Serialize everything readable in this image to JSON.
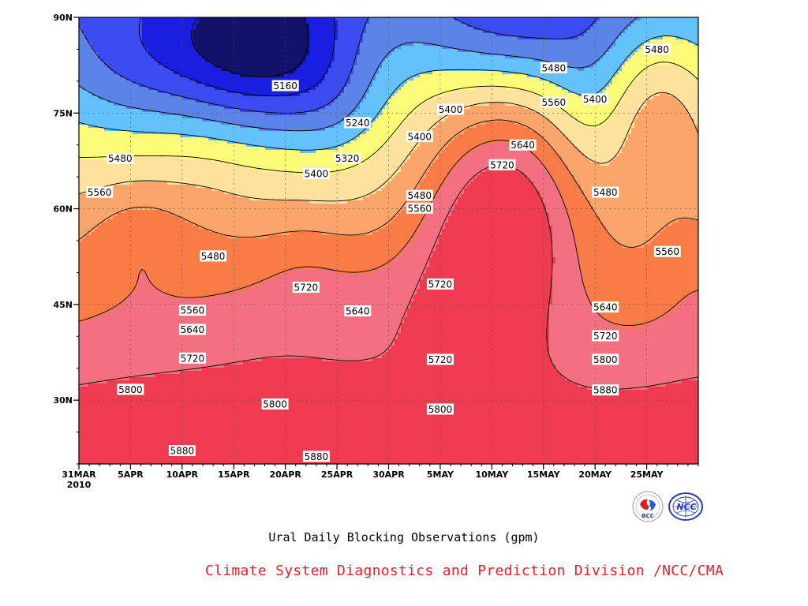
{
  "chart_data": {
    "type": "heatmap",
    "title": "Ural Daily Blocking Observations (gpm)",
    "credit": "Climate System Diagnostics and Prediction Division /NCC/CMA",
    "x": {
      "start": "2010-03-31",
      "end": "2010-05-30",
      "ticks": [
        {
          "date": "2010-03-31",
          "label": "31MAR",
          "sublabel": "2010"
        },
        {
          "date": "2010-04-05",
          "label": "5APR"
        },
        {
          "date": "2010-04-10",
          "label": "10APR"
        },
        {
          "date": "2010-04-15",
          "label": "15APR"
        },
        {
          "date": "2010-04-20",
          "label": "20APR"
        },
        {
          "date": "2010-04-25",
          "label": "25APR"
        },
        {
          "date": "2010-04-30",
          "label": "30APR"
        },
        {
          "date": "2010-05-05",
          "label": "5MAY"
        },
        {
          "date": "2010-05-10",
          "label": "10MAY"
        },
        {
          "date": "2010-05-15",
          "label": "15MAY"
        },
        {
          "date": "2010-05-20",
          "label": "20MAY"
        },
        {
          "date": "2010-05-25",
          "label": "25MAY"
        }
      ]
    },
    "y": {
      "range": [
        20,
        90
      ],
      "unit": "N",
      "ticks": [
        {
          "value": 30,
          "label": "30N"
        },
        {
          "value": 45,
          "label": "45N"
        },
        {
          "value": 60,
          "label": "60N"
        },
        {
          "value": 75,
          "label": "75N"
        },
        {
          "value": 90,
          "label": "90N"
        }
      ]
    },
    "grid": true,
    "contour_levels": [
      5160,
      5240,
      5320,
      5400,
      5480,
      5560,
      5640,
      5720,
      5800,
      5880
    ],
    "fill_colors": [
      "#10126a",
      "#1a1ee0",
      "#3a4bf0",
      "#5a84e8",
      "#63c2fb",
      "#fdfc78",
      "#fde29d",
      "#fba56a",
      "#f97b45",
      "#f37080",
      "#ef3b4f"
    ],
    "contour_labels": [
      {
        "text": "5160",
        "date": "2010-04-20",
        "lat": 79.3
      },
      {
        "text": "5240",
        "date": "2010-04-27",
        "lat": 73.5
      },
      {
        "text": "5320",
        "date": "2010-04-26",
        "lat": 67.9
      },
      {
        "text": "5400",
        "date": "2010-04-23",
        "lat": 65.5
      },
      {
        "text": "5400",
        "date": "2010-05-03",
        "lat": 71.3
      },
      {
        "text": "5400",
        "date": "2010-05-06",
        "lat": 75.6
      },
      {
        "text": "5400",
        "date": "2010-05-20",
        "lat": 77.2
      },
      {
        "text": "5480",
        "date": "2010-04-04",
        "lat": 67.9
      },
      {
        "text": "5480",
        "date": "2010-04-13",
        "lat": 52.6
      },
      {
        "text": "5480",
        "date": "2010-05-03",
        "lat": 62.1
      },
      {
        "text": "5480",
        "date": "2010-05-16",
        "lat": 82.1
      },
      {
        "text": "5480",
        "date": "2010-05-21",
        "lat": 62.6
      },
      {
        "text": "5480",
        "date": "2010-05-26",
        "lat": 85.0
      },
      {
        "text": "5560",
        "date": "2010-04-02",
        "lat": 62.6
      },
      {
        "text": "5560",
        "date": "2010-04-11",
        "lat": 44.1
      },
      {
        "text": "5560",
        "date": "2010-05-03",
        "lat": 60.1
      },
      {
        "text": "5560",
        "date": "2010-05-16",
        "lat": 76.7
      },
      {
        "text": "5560",
        "date": "2010-05-27",
        "lat": 53.3
      },
      {
        "text": "5640",
        "date": "2010-04-11",
        "lat": 41.1
      },
      {
        "text": "5640",
        "date": "2010-04-27",
        "lat": 44.0
      },
      {
        "text": "5640",
        "date": "2010-05-13",
        "lat": 70.0
      },
      {
        "text": "5640",
        "date": "2010-05-21",
        "lat": 44.6
      },
      {
        "text": "5720",
        "date": "2010-04-11",
        "lat": 36.6
      },
      {
        "text": "5720",
        "date": "2010-04-22",
        "lat": 47.7
      },
      {
        "text": "5720",
        "date": "2010-05-05",
        "lat": 36.4
      },
      {
        "text": "5720",
        "date": "2010-05-05",
        "lat": 48.2
      },
      {
        "text": "5720",
        "date": "2010-05-11",
        "lat": 66.9
      },
      {
        "text": "5720",
        "date": "2010-05-21",
        "lat": 40.1
      },
      {
        "text": "5800",
        "date": "2010-04-05",
        "lat": 31.7
      },
      {
        "text": "5800",
        "date": "2010-04-19",
        "lat": 29.4
      },
      {
        "text": "5800",
        "date": "2010-05-05",
        "lat": 28.6
      },
      {
        "text": "5800",
        "date": "2010-05-21",
        "lat": 36.4
      },
      {
        "text": "5880",
        "date": "2010-04-10",
        "lat": 22.1
      },
      {
        "text": "5880",
        "date": "2010-04-23",
        "lat": 21.2
      },
      {
        "text": "5880",
        "date": "2010-05-21",
        "lat": 31.6
      }
    ]
  },
  "logos": [
    {
      "name": "BCC",
      "text": "BCC"
    },
    {
      "name": "NCC",
      "text": "NCC"
    }
  ]
}
